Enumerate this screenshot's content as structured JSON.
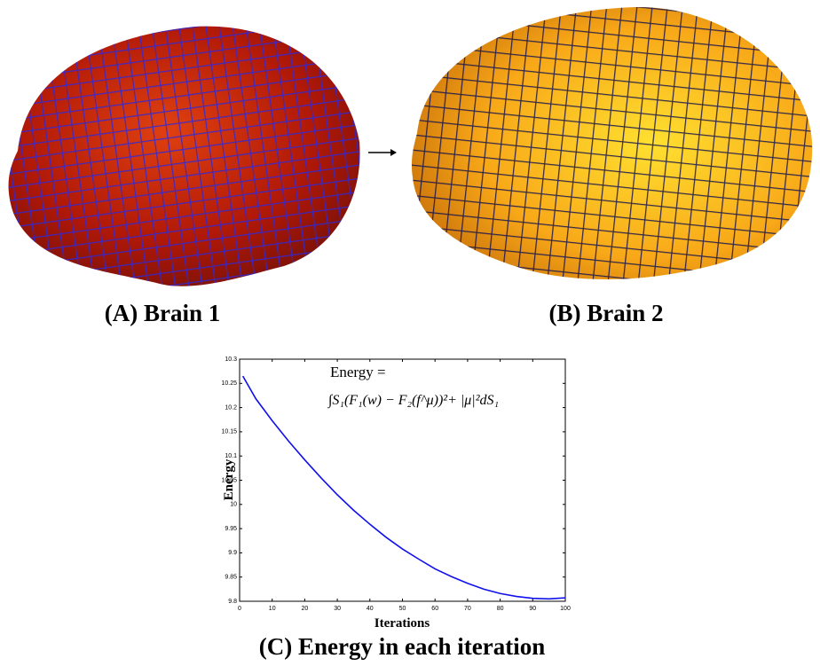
{
  "panels": [
    {
      "caption": "(A) Brain 1"
    },
    {
      "caption": "(B) Brain 2"
    }
  ],
  "chart_data": {
    "type": "line",
    "title": "(C) Energy in each iteration",
    "xlabel": "Iterations",
    "ylabel": "Energy",
    "annotations": [
      "Energy =",
      "∫S₁(F₁(w) − F₂(f^μ))²+ |μ|²dS₁"
    ],
    "x": [
      1,
      5,
      10,
      15,
      20,
      25,
      30,
      35,
      40,
      45,
      50,
      55,
      60,
      65,
      70,
      75,
      80,
      85,
      90,
      95,
      100
    ],
    "series": [
      {
        "name": "Energy",
        "color": "#1010ee",
        "values": [
          10.265,
          10.218,
          10.173,
          10.131,
          10.092,
          10.055,
          10.02,
          9.988,
          9.959,
          9.932,
          9.908,
          9.887,
          9.867,
          9.851,
          9.837,
          9.825,
          9.816,
          9.81,
          9.806,
          9.805,
          9.807
        ]
      }
    ],
    "xlim": [
      0,
      100
    ],
    "xticks": [
      0,
      10,
      20,
      30,
      40,
      50,
      60,
      70,
      80,
      90,
      100
    ],
    "ylim": [
      9.8,
      10.3
    ],
    "yticks": [
      9.8,
      9.85,
      9.9,
      9.95,
      10,
      10.05,
      10.1,
      10.15,
      10.2,
      10.25,
      10.3
    ],
    "grid": false
  }
}
